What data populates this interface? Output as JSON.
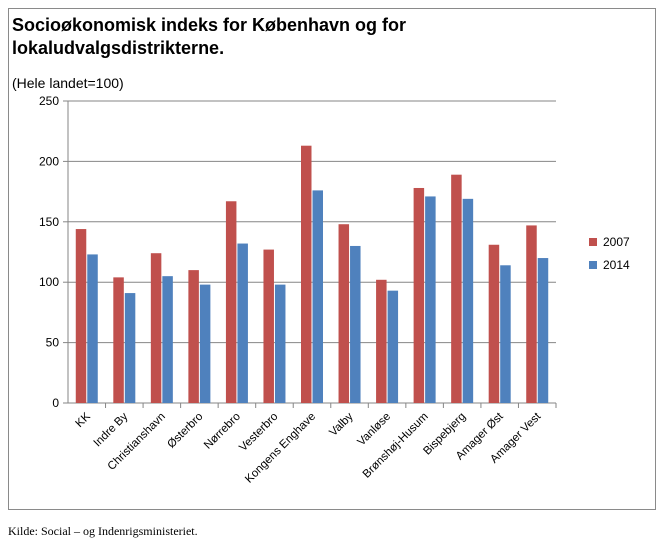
{
  "title_line1": "Socioøkonomisk indeks for København og for",
  "title_line2": "lokaludvalgsdistrikterne.",
  "subtitle": "(Hele landet=100)",
  "source": "Kilde: Social – og Indenrigsministeriet.",
  "colors": {
    "2007": "#c0504d",
    "2014": "#4f81bd"
  },
  "chart_data": {
    "type": "bar",
    "categories": [
      "KK",
      "Indre By",
      "Christianshavn",
      "Østerbro",
      "Nørrebro",
      "Vesterbro",
      "Kongens Enghave",
      "Valby",
      "Vanløse",
      "Brønshøj-Husum",
      "Bispebjerg",
      "Amager Øst",
      "Amager Vest"
    ],
    "series": [
      {
        "name": "2007",
        "values": [
          144,
          104,
          124,
          110,
          167,
          127,
          213,
          148,
          102,
          178,
          189,
          131,
          147
        ]
      },
      {
        "name": "2014",
        "values": [
          123,
          91,
          105,
          98,
          132,
          98,
          176,
          130,
          93,
          171,
          169,
          114,
          120
        ]
      }
    ],
    "ylim": [
      0,
      250
    ],
    "yticks": [
      0,
      50,
      100,
      150,
      200,
      250
    ],
    "grid": true,
    "legend": "right"
  }
}
